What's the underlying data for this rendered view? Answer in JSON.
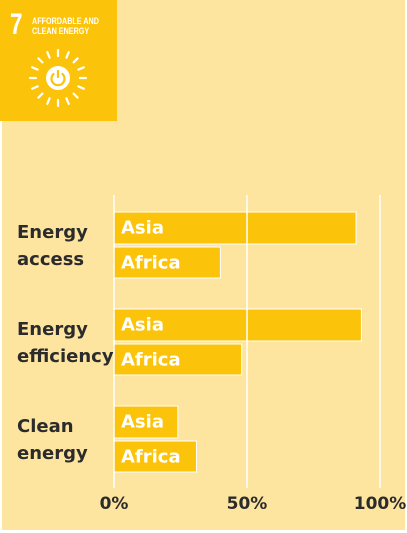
{
  "chart_data": {
    "type": "hbar",
    "badge": {
      "number": "7",
      "label": "AFFORDABLE AND CLEAN ENERGY"
    },
    "categories": [
      "Energy access",
      "Energy efficiency",
      "Clean energy"
    ],
    "series": [
      {
        "name": "Asia",
        "color": "#fcc30b",
        "values": [
          91,
          93,
          24
        ]
      },
      {
        "name": "Africa",
        "color": "#fcc30b",
        "values": [
          40,
          48,
          31
        ]
      }
    ],
    "xlim": [
      0,
      100
    ],
    "xticks": [
      {
        "value": 0,
        "label": "0%"
      },
      {
        "value": 50,
        "label": "50%"
      },
      {
        "value": 100,
        "label": "100%"
      }
    ],
    "grid": true
  }
}
